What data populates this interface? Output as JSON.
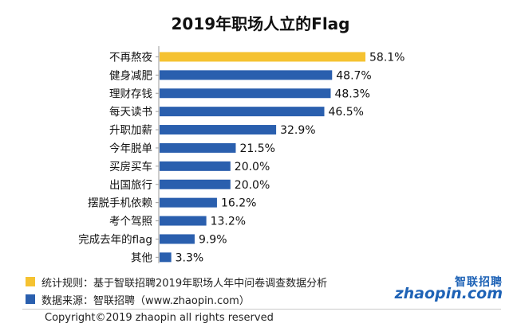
{
  "chart_data": {
    "type": "bar",
    "orientation": "horizontal",
    "title": "2019年职场人立的Flag",
    "categories": [
      "不再熬夜",
      "健身减肥",
      "理财存钱",
      "每天读书",
      "升职加薪",
      "今年脱单",
      "买房买车",
      "出国旅行",
      "摆脱手机依赖",
      "考个驾照",
      "完成去年的flag",
      "其他"
    ],
    "values": [
      58.1,
      48.7,
      48.3,
      46.5,
      32.9,
      21.5,
      20.0,
      20.0,
      16.2,
      13.2,
      9.9,
      3.3
    ],
    "value_labels": [
      "58.1%",
      "48.7%",
      "48.3%",
      "46.5%",
      "32.9%",
      "21.5%",
      "20.0%",
      "20.0%",
      "16.2%",
      "13.2%",
      "9.9%",
      "3.3%"
    ],
    "highlight_color": "#F5C231",
    "bar_color": "#2A5FAE",
    "xlim": [
      0,
      58.1
    ]
  },
  "notes": [
    {
      "text": "统计规则：基于智联招聘2019年职场人年中问卷调查数据分析",
      "color": "#F5C231"
    },
    {
      "text": "数据来源：智联招聘（www.zhaopin.com）",
      "color": "#2A5FAE"
    }
  ],
  "copyright": "Copyright©2019 zhaopin all rights reserved",
  "logo": {
    "cn": "智联招聘",
    "en": "zhaopin.com"
  }
}
